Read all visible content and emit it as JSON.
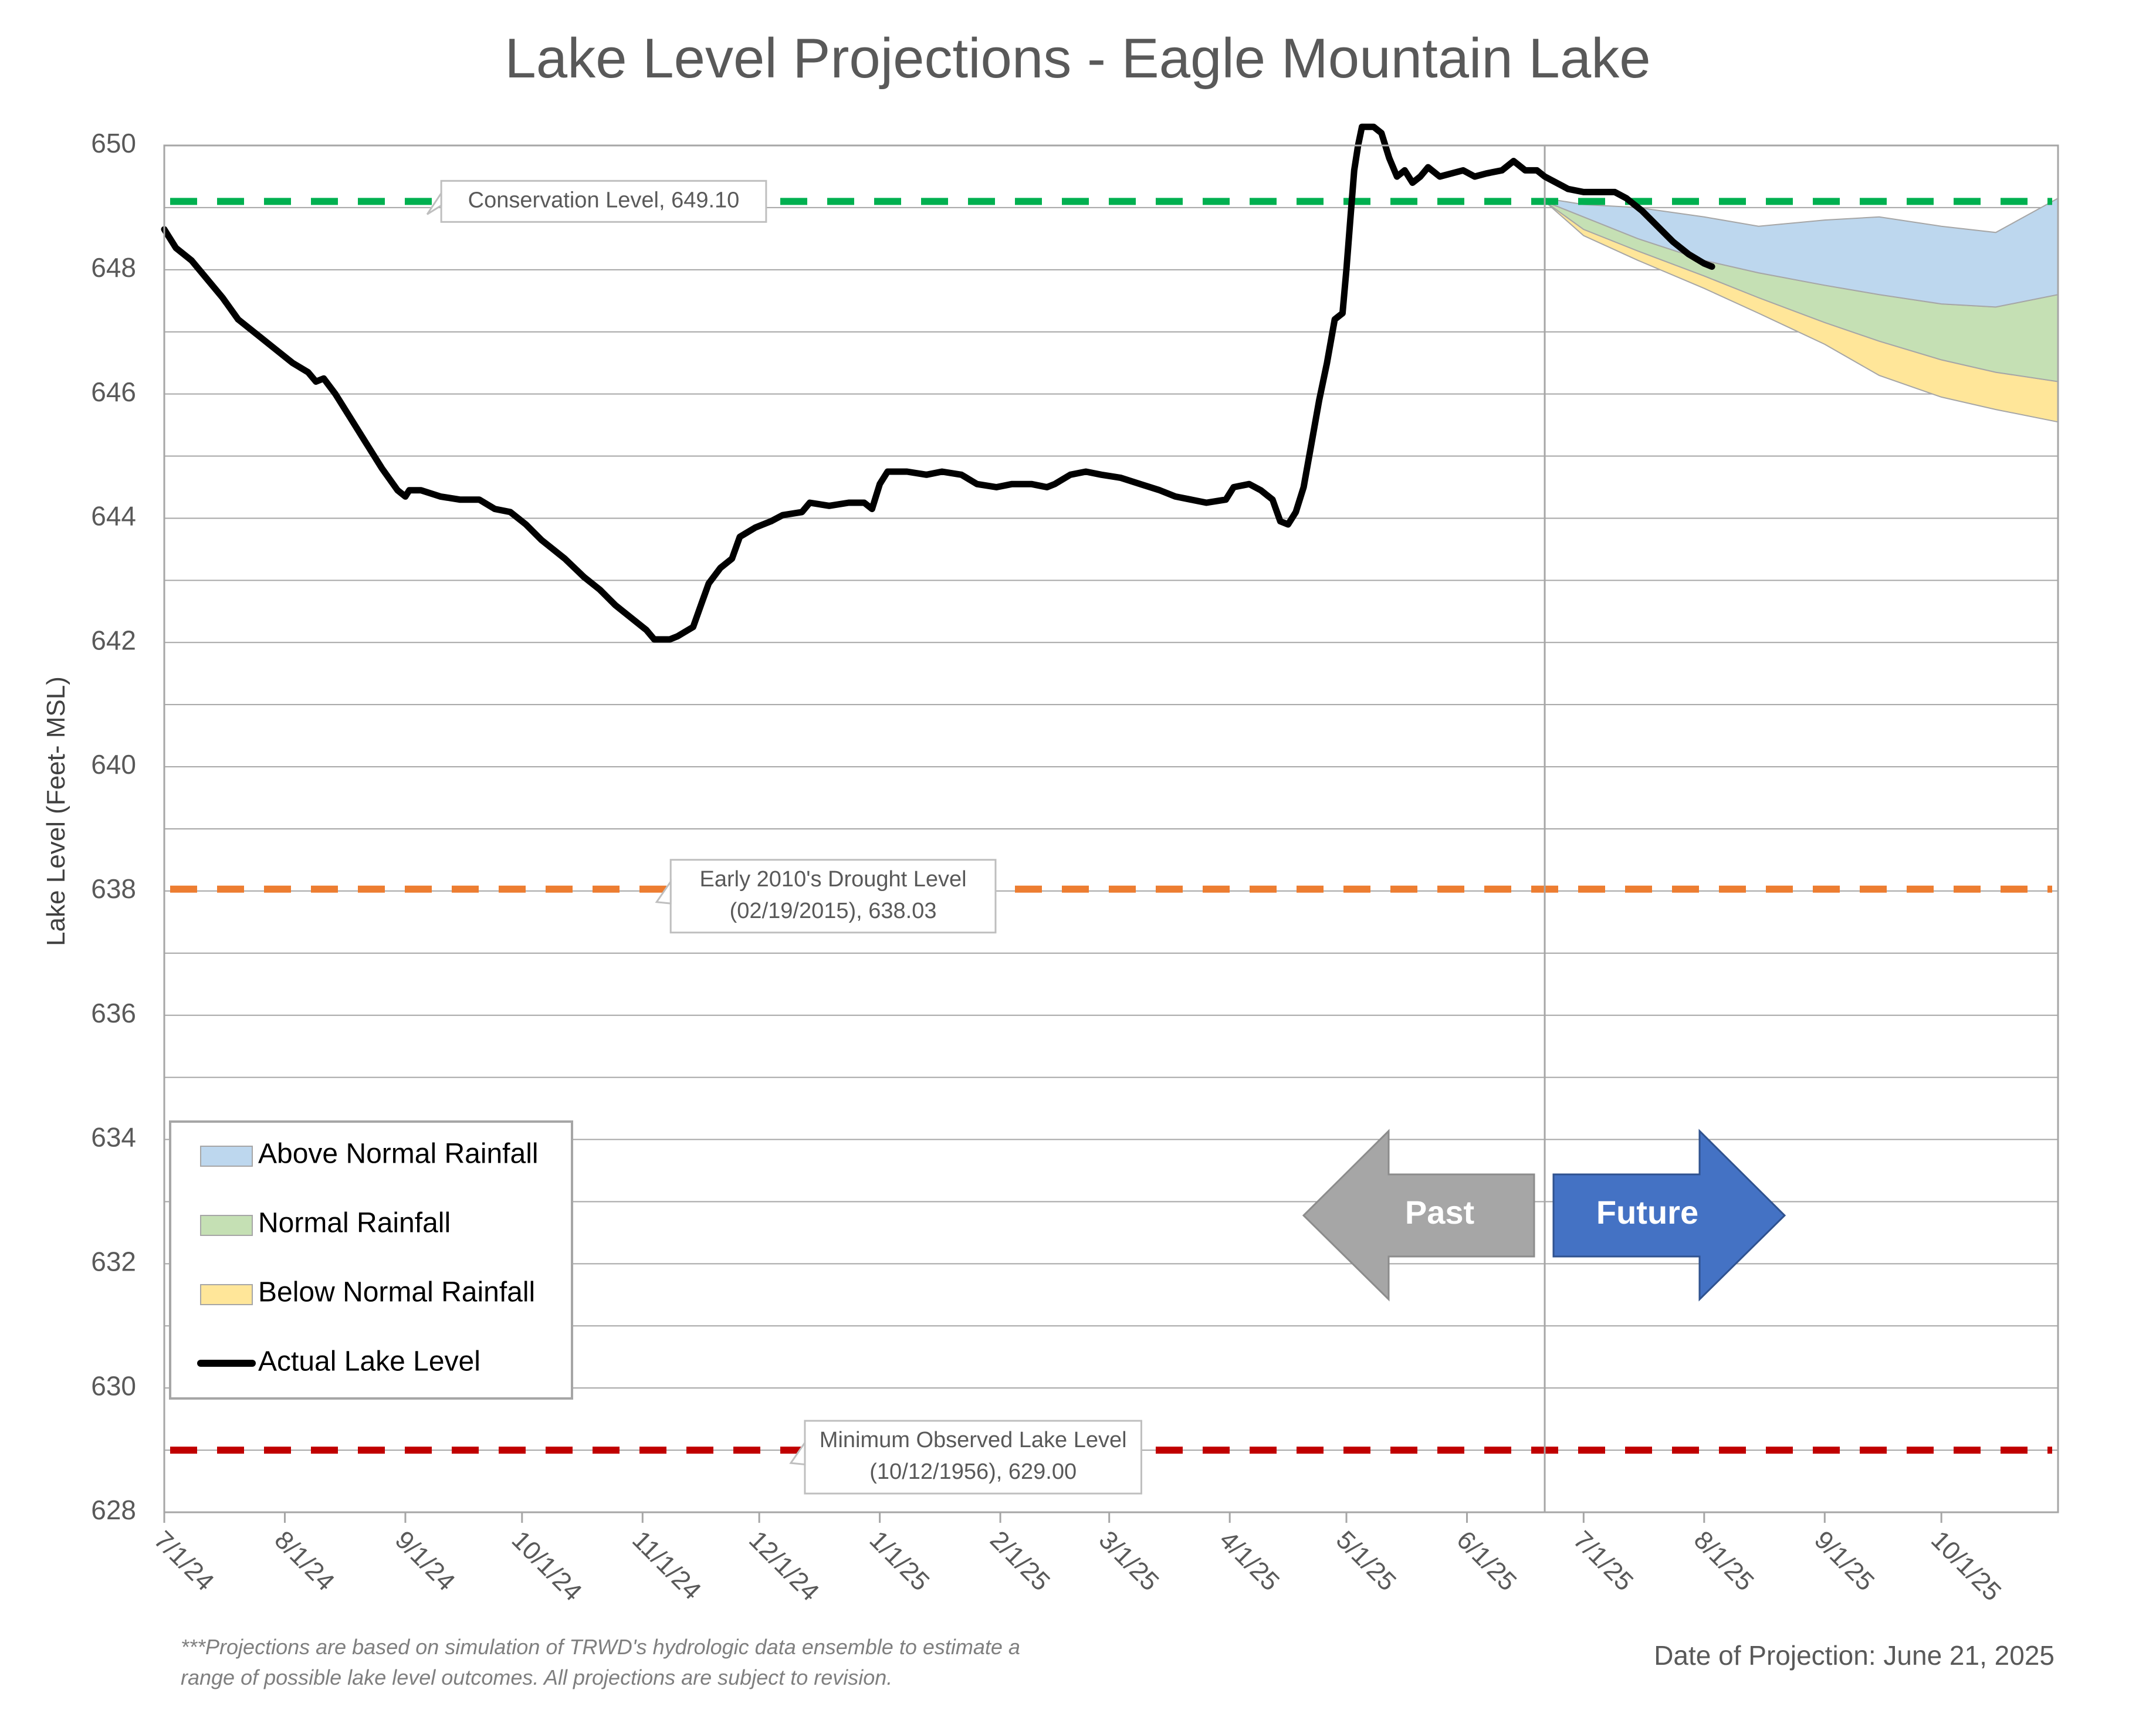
{
  "chart_data": {
    "type": "area",
    "title": "Lake Level Projections - Eagle Mountain Lake",
    "ylabel": "Lake Level (Feet- MSL)",
    "xlabel": "",
    "ylim": [
      628,
      650
    ],
    "yticks": [
      628,
      630,
      632,
      634,
      636,
      638,
      640,
      642,
      644,
      646,
      648,
      650
    ],
    "ytick_labels": [
      "628",
      "630",
      "632",
      "634",
      "636",
      "638",
      "640",
      "642",
      "644",
      "646",
      "648",
      "650"
    ],
    "xlim": [
      "2024-07-01",
      "2025-10-31"
    ],
    "xticks": [
      {
        "date": "2024-07-01",
        "label": "7/1/24"
      },
      {
        "date": "2024-08-01",
        "label": "8/1/24"
      },
      {
        "date": "2024-09-01",
        "label": "9/1/24"
      },
      {
        "date": "2024-10-01",
        "label": "10/1/24"
      },
      {
        "date": "2024-11-01",
        "label": "11/1/24"
      },
      {
        "date": "2024-12-01",
        "label": "12/1/24"
      },
      {
        "date": "2025-01-01",
        "label": "1/1/25"
      },
      {
        "date": "2025-02-01",
        "label": "2/1/25"
      },
      {
        "date": "2025-03-01",
        "label": "3/1/25"
      },
      {
        "date": "2025-04-01",
        "label": "4/1/25"
      },
      {
        "date": "2025-05-01",
        "label": "5/1/25"
      },
      {
        "date": "2025-06-01",
        "label": "6/1/25"
      },
      {
        "date": "2025-07-01",
        "label": "7/1/25"
      },
      {
        "date": "2025-08-01",
        "label": "8/1/25"
      },
      {
        "date": "2025-09-01",
        "label": "9/1/25"
      },
      {
        "date": "2025-10-01",
        "label": "10/1/25"
      }
    ],
    "grid": "horizontal",
    "projection_date": "2025-06-21",
    "reference_lines": [
      {
        "name": "Conservation Level",
        "value": 649.1,
        "color": "#00b050",
        "label": "Conservation Level, 649.10",
        "label_at": "2024-10-22"
      },
      {
        "name": "Early 2010's Drought Level",
        "value": 638.03,
        "color": "#ed7d31",
        "label_lines": [
          "Early 2010's Drought Level",
          "(02/19/2015), 638.03"
        ],
        "label_at": "2024-12-20"
      },
      {
        "name": "Minimum Observed Lake Level",
        "value": 629.0,
        "color": "#c00000",
        "label_lines": [
          "Minimum Observed Lake Level",
          "(10/12/1956), 629.00"
        ],
        "label_at": "2025-01-25"
      }
    ],
    "series": [
      {
        "name": "Actual Lake Level",
        "color": "#000000",
        "points": [
          [
            "2024-07-01",
            648.65
          ],
          [
            "2024-07-04",
            648.35
          ],
          [
            "2024-07-08",
            648.15
          ],
          [
            "2024-07-12",
            647.85
          ],
          [
            "2024-07-16",
            647.55
          ],
          [
            "2024-07-20",
            647.2
          ],
          [
            "2024-07-25",
            646.95
          ],
          [
            "2024-07-30",
            646.7
          ],
          [
            "2024-08-03",
            646.5
          ],
          [
            "2024-08-07",
            646.35
          ],
          [
            "2024-08-09",
            646.2
          ],
          [
            "2024-08-11",
            646.25
          ],
          [
            "2024-08-14",
            646.0
          ],
          [
            "2024-08-18",
            645.6
          ],
          [
            "2024-08-22",
            645.2
          ],
          [
            "2024-08-26",
            644.8
          ],
          [
            "2024-08-30",
            644.45
          ],
          [
            "2024-09-01",
            644.35
          ],
          [
            "2024-09-02",
            644.45
          ],
          [
            "2024-09-05",
            644.45
          ],
          [
            "2024-09-10",
            644.35
          ],
          [
            "2024-09-15",
            644.3
          ],
          [
            "2024-09-20",
            644.3
          ],
          [
            "2024-09-24",
            644.15
          ],
          [
            "2024-09-28",
            644.1
          ],
          [
            "2024-10-02",
            643.9
          ],
          [
            "2024-10-06",
            643.65
          ],
          [
            "2024-10-12",
            643.35
          ],
          [
            "2024-10-17",
            643.05
          ],
          [
            "2024-10-21",
            642.85
          ],
          [
            "2024-10-25",
            642.6
          ],
          [
            "2024-10-30",
            642.35
          ],
          [
            "2024-11-02",
            642.2
          ],
          [
            "2024-11-04",
            642.05
          ],
          [
            "2024-11-08",
            642.05
          ],
          [
            "2024-11-10",
            642.1
          ],
          [
            "2024-11-14",
            642.25
          ],
          [
            "2024-11-16",
            642.6
          ],
          [
            "2024-11-18",
            642.95
          ],
          [
            "2024-11-21",
            643.2
          ],
          [
            "2024-11-24",
            643.35
          ],
          [
            "2024-11-26",
            643.7
          ],
          [
            "2024-11-30",
            643.85
          ],
          [
            "2024-12-04",
            643.95
          ],
          [
            "2024-12-07",
            644.05
          ],
          [
            "2024-12-12",
            644.1
          ],
          [
            "2024-12-14",
            644.25
          ],
          [
            "2024-12-19",
            644.2
          ],
          [
            "2024-12-24",
            644.25
          ],
          [
            "2024-12-28",
            644.25
          ],
          [
            "2024-12-30",
            644.15
          ],
          [
            "2025-01-01",
            644.55
          ],
          [
            "2025-01-03",
            644.75
          ],
          [
            "2025-01-08",
            644.75
          ],
          [
            "2025-01-13",
            644.7
          ],
          [
            "2025-01-17",
            644.75
          ],
          [
            "2025-01-22",
            644.7
          ],
          [
            "2025-01-26",
            644.55
          ],
          [
            "2025-01-31",
            644.5
          ],
          [
            "2025-02-04",
            644.55
          ],
          [
            "2025-02-09",
            644.55
          ],
          [
            "2025-02-13",
            644.5
          ],
          [
            "2025-02-15",
            644.55
          ],
          [
            "2025-02-19",
            644.7
          ],
          [
            "2025-02-23",
            644.75
          ],
          [
            "2025-02-27",
            644.7
          ],
          [
            "2025-03-04",
            644.65
          ],
          [
            "2025-03-09",
            644.55
          ],
          [
            "2025-03-14",
            644.45
          ],
          [
            "2025-03-18",
            644.35
          ],
          [
            "2025-03-22",
            644.3
          ],
          [
            "2025-03-26",
            644.25
          ],
          [
            "2025-03-31",
            644.3
          ],
          [
            "2025-04-02",
            644.5
          ],
          [
            "2025-04-06",
            644.55
          ],
          [
            "2025-04-09",
            644.45
          ],
          [
            "2025-04-12",
            644.3
          ],
          [
            "2025-04-14",
            643.95
          ],
          [
            "2025-04-16",
            643.9
          ],
          [
            "2025-04-18",
            644.1
          ],
          [
            "2025-04-20",
            644.5
          ],
          [
            "2025-04-22",
            645.2
          ],
          [
            "2025-04-24",
            645.9
          ],
          [
            "2025-04-26",
            646.5
          ],
          [
            "2025-04-28",
            647.2
          ],
          [
            "2025-04-30",
            647.3
          ],
          [
            "2025-05-01",
            648.0
          ],
          [
            "2025-05-02",
            648.8
          ],
          [
            "2025-05-03",
            649.6
          ],
          [
            "2025-05-04",
            650.0
          ],
          [
            "2025-05-05",
            650.3
          ],
          [
            "2025-05-08",
            650.3
          ],
          [
            "2025-05-10",
            650.2
          ],
          [
            "2025-05-12",
            649.8
          ],
          [
            "2025-05-14",
            649.5
          ],
          [
            "2025-05-16",
            649.6
          ],
          [
            "2025-05-18",
            649.4
          ],
          [
            "2025-05-20",
            649.5
          ],
          [
            "2025-05-22",
            649.65
          ],
          [
            "2025-05-25",
            649.5
          ],
          [
            "2025-05-28",
            649.55
          ],
          [
            "2025-05-31",
            649.6
          ],
          [
            "2025-06-03",
            649.5
          ],
          [
            "2025-06-06",
            649.55
          ],
          [
            "2025-06-10",
            649.6
          ],
          [
            "2025-06-13",
            649.75
          ],
          [
            "2025-06-16",
            649.6
          ],
          [
            "2025-06-19",
            649.6
          ],
          [
            "2025-06-21",
            649.5
          ],
          [
            "2025-06-24",
            649.4
          ],
          [
            "2025-06-27",
            649.3
          ],
          [
            "2025-07-01",
            649.25
          ],
          [
            "2025-07-05",
            649.25
          ],
          [
            "2025-07-09",
            649.25
          ],
          [
            "2025-07-12",
            649.15
          ],
          [
            "2025-07-16",
            648.95
          ],
          [
            "2025-07-20",
            648.7
          ],
          [
            "2025-07-24",
            648.45
          ],
          [
            "2025-07-28",
            648.25
          ],
          [
            "2025-08-01",
            648.1
          ],
          [
            "2025-08-03",
            648.05
          ]
        ]
      }
    ],
    "bands": [
      {
        "name": "Below Normal Rainfall",
        "color": "#ffe699",
        "dates": [
          "2025-06-21",
          "2025-07-01",
          "2025-07-15",
          "2025-08-01",
          "2025-08-15",
          "2025-09-01",
          "2025-09-15",
          "2025-10-01",
          "2025-10-15",
          "2025-10-31"
        ],
        "upper": [
          649.1,
          648.65,
          648.3,
          647.9,
          647.55,
          647.15,
          646.85,
          646.55,
          646.35,
          646.2
        ],
        "lower": [
          649.1,
          648.55,
          648.15,
          647.7,
          647.3,
          646.8,
          646.3,
          645.95,
          645.75,
          645.55
        ]
      },
      {
        "name": "Normal Rainfall",
        "color": "#c5e0b4",
        "dates": [
          "2025-06-21",
          "2025-07-01",
          "2025-07-15",
          "2025-08-01",
          "2025-08-15",
          "2025-09-01",
          "2025-09-15",
          "2025-10-01",
          "2025-10-15",
          "2025-10-31"
        ],
        "upper": [
          649.1,
          648.85,
          648.5,
          648.15,
          647.95,
          647.75,
          647.6,
          647.45,
          647.4,
          647.6
        ],
        "lower": [
          649.1,
          648.65,
          648.3,
          647.9,
          647.55,
          647.15,
          646.85,
          646.55,
          646.35,
          646.2
        ]
      },
      {
        "name": "Above Normal Rainfall",
        "color": "#bdd7ee",
        "dates": [
          "2025-06-21",
          "2025-07-01",
          "2025-07-15",
          "2025-08-01",
          "2025-08-15",
          "2025-09-01",
          "2025-09-15",
          "2025-10-01",
          "2025-10-15",
          "2025-10-31"
        ],
        "upper": [
          649.15,
          649.05,
          649.0,
          648.85,
          648.7,
          648.8,
          648.85,
          648.7,
          648.6,
          649.15
        ],
        "lower": [
          649.1,
          648.85,
          648.5,
          648.15,
          647.95,
          647.75,
          647.6,
          647.45,
          647.4,
          647.6
        ]
      }
    ],
    "legend": {
      "placement": "bottom-left",
      "items": [
        {
          "label": "Above Normal Rainfall",
          "color": "#bdd7ee",
          "kind": "box"
        },
        {
          "label": "Normal Rainfall",
          "color": "#c5e0b4",
          "kind": "box"
        },
        {
          "label": "Below Normal Rainfall",
          "color": "#ffe699",
          "kind": "box"
        },
        {
          "label": "Actual Lake Level",
          "color": "#000000",
          "kind": "line"
        }
      ]
    },
    "arrows": {
      "past_label": "Past",
      "past_color": "#a6a6a6",
      "future_label": "Future",
      "future_color": "#4472c4"
    },
    "footnote_lines": [
      "***Projections are based on simulation of TRWD's hydrologic data ensemble to estimate a",
      "range of possible lake level outcomes.  All projections are subject to revision."
    ],
    "projection_note": "Date of Projection: June 21, 2025"
  }
}
